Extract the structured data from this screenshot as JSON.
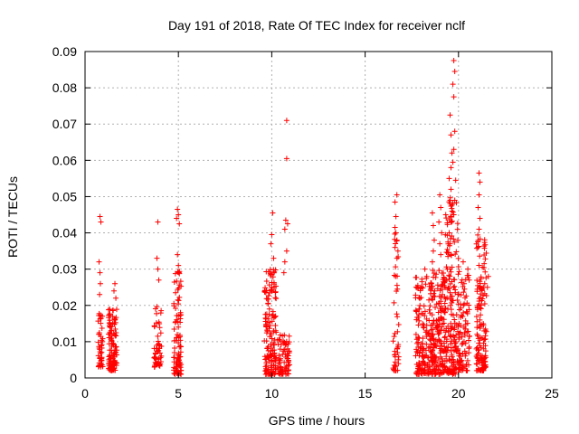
{
  "chart_data": {
    "type": "scatter",
    "title": "Day 191 of 2018, Rate Of TEC Index for receiver nclf",
    "xlabel": "GPS time / hours",
    "ylabel": "ROTI / TECUs",
    "xlim": [
      0,
      25
    ],
    "ylim": [
      0,
      0.09
    ],
    "x_ticks": [
      0,
      5,
      10,
      15,
      20,
      25
    ],
    "x_tick_labels": [
      "0",
      "5",
      "10",
      "15",
      "20",
      "25"
    ],
    "y_ticks": [
      0,
      0.01,
      0.02,
      0.03,
      0.04,
      0.05,
      0.06,
      0.07,
      0.08,
      0.09
    ],
    "y_tick_labels": [
      "0",
      "0.01",
      "0.02",
      "0.03",
      "0.04",
      "0.05",
      "0.06",
      "0.07",
      "0.08",
      "0.09"
    ],
    "grid": true,
    "marker": "+",
    "marker_color": "#ff0000",
    "clusters": [
      {
        "x_range": [
          0.7,
          0.95
        ],
        "y_range": [
          0.003,
          0.018
        ],
        "count": 45
      },
      {
        "x_range": [
          1.25,
          1.7
        ],
        "y_range": [
          0.002,
          0.019
        ],
        "count": 110
      },
      {
        "x_range": [
          3.7,
          4.1
        ],
        "y_range": [
          0.003,
          0.02
        ],
        "count": 55
      },
      {
        "x_range": [
          4.75,
          5.15
        ],
        "y_range": [
          0.001,
          0.03
        ],
        "count": 95
      },
      {
        "x_range": [
          9.6,
          10.25
        ],
        "y_range": [
          0.001,
          0.03
        ],
        "count": 150
      },
      {
        "x_range": [
          10.3,
          10.95
        ],
        "y_range": [
          0.001,
          0.012
        ],
        "count": 75
      },
      {
        "x_range": [
          16.5,
          16.8
        ],
        "y_range": [
          0.002,
          0.04
        ],
        "count": 45
      },
      {
        "x_range": [
          17.7,
          18.5
        ],
        "y_range": [
          0.001,
          0.028
        ],
        "count": 140
      },
      {
        "x_range": [
          18.5,
          19.3
        ],
        "y_range": [
          0.001,
          0.03
        ],
        "count": 190
      },
      {
        "x_range": [
          19.3,
          20.0
        ],
        "y_range": [
          0.001,
          0.05
        ],
        "count": 170
      },
      {
        "x_range": [
          20.0,
          20.6
        ],
        "y_range": [
          0.002,
          0.03
        ],
        "count": 90
      },
      {
        "x_range": [
          20.95,
          21.5
        ],
        "y_range": [
          0.002,
          0.04
        ],
        "count": 140
      }
    ],
    "outliers": [
      [
        0.8,
        0.0445
      ],
      [
        0.85,
        0.043
      ],
      [
        0.75,
        0.032
      ],
      [
        0.8,
        0.029
      ],
      [
        0.82,
        0.026
      ],
      [
        0.78,
        0.023
      ],
      [
        1.6,
        0.026
      ],
      [
        1.55,
        0.024
      ],
      [
        1.65,
        0.022
      ],
      [
        3.9,
        0.043
      ],
      [
        3.85,
        0.033
      ],
      [
        3.9,
        0.03
      ],
      [
        3.95,
        0.027
      ],
      [
        4.95,
        0.0465
      ],
      [
        5.0,
        0.045
      ],
      [
        4.9,
        0.044
      ],
      [
        5.05,
        0.0425
      ],
      [
        4.95,
        0.034
      ],
      [
        5.0,
        0.031
      ],
      [
        10.05,
        0.0455
      ],
      [
        10.0,
        0.0395
      ],
      [
        9.95,
        0.037
      ],
      [
        10.1,
        0.033
      ],
      [
        10.8,
        0.071
      ],
      [
        10.8,
        0.0605
      ],
      [
        10.75,
        0.0435
      ],
      [
        10.85,
        0.0425
      ],
      [
        10.7,
        0.041
      ],
      [
        10.8,
        0.035
      ],
      [
        10.7,
        0.032
      ],
      [
        10.65,
        0.029
      ],
      [
        16.7,
        0.0505
      ],
      [
        16.6,
        0.0485
      ],
      [
        16.65,
        0.0445
      ],
      [
        16.6,
        0.0415
      ],
      [
        16.65,
        0.04
      ],
      [
        16.7,
        0.038
      ],
      [
        16.6,
        0.036
      ],
      [
        18.2,
        0.03
      ],
      [
        18.3,
        0.028
      ],
      [
        18.6,
        0.0455
      ],
      [
        18.65,
        0.042
      ],
      [
        18.7,
        0.038
      ],
      [
        18.65,
        0.035
      ],
      [
        18.6,
        0.032
      ],
      [
        19.0,
        0.0505
      ],
      [
        19.05,
        0.047
      ],
      [
        18.95,
        0.043
      ],
      [
        19.1,
        0.04
      ],
      [
        19.0,
        0.037
      ],
      [
        19.05,
        0.034
      ],
      [
        19.55,
        0.0725
      ],
      [
        19.6,
        0.067
      ],
      [
        19.65,
        0.062
      ],
      [
        19.6,
        0.058
      ],
      [
        19.5,
        0.055
      ],
      [
        19.6,
        0.052
      ],
      [
        19.55,
        0.049
      ],
      [
        19.65,
        0.046
      ],
      [
        19.6,
        0.043
      ],
      [
        19.5,
        0.04
      ],
      [
        19.55,
        0.037
      ],
      [
        19.6,
        0.034
      ],
      [
        19.75,
        0.0875
      ],
      [
        19.8,
        0.0845
      ],
      [
        19.7,
        0.081
      ],
      [
        19.75,
        0.0775
      ],
      [
        19.8,
        0.068
      ],
      [
        19.75,
        0.063
      ],
      [
        19.7,
        0.0595
      ],
      [
        19.85,
        0.0545
      ],
      [
        19.8,
        0.049
      ],
      [
        19.75,
        0.045
      ],
      [
        20.25,
        0.032
      ],
      [
        20.5,
        0.03
      ],
      [
        20.3,
        0.026
      ],
      [
        21.1,
        0.0565
      ],
      [
        21.15,
        0.054
      ],
      [
        21.1,
        0.0505
      ],
      [
        21.05,
        0.047
      ],
      [
        21.15,
        0.044
      ],
      [
        21.1,
        0.041
      ],
      [
        21.6,
        0.028
      ],
      [
        21.55,
        0.025
      ]
    ]
  }
}
